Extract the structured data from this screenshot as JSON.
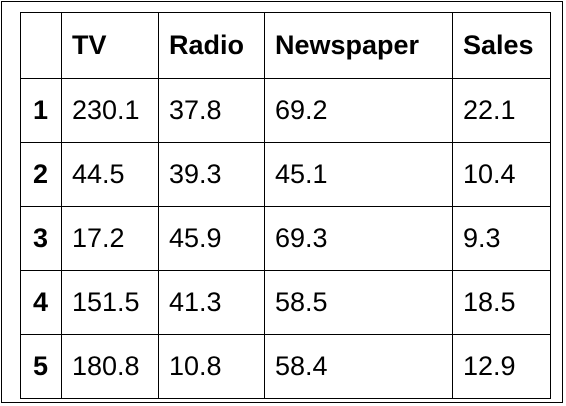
{
  "table": {
    "index_header": "",
    "columns": [
      "TV",
      "Radio",
      "Newspaper",
      "Sales"
    ],
    "rows": [
      {
        "index": "1",
        "cells": [
          "230.1",
          "37.8",
          "69.2",
          "22.1"
        ]
      },
      {
        "index": "2",
        "cells": [
          "44.5",
          "39.3",
          "45.1",
          "10.4"
        ]
      },
      {
        "index": "3",
        "cells": [
          "17.2",
          "45.9",
          "69.3",
          "9.3"
        ]
      },
      {
        "index": "4",
        "cells": [
          "151.5",
          "41.3",
          "58.5",
          "18.5"
        ]
      },
      {
        "index": "5",
        "cells": [
          "180.8",
          "10.8",
          "58.4",
          "12.9"
        ]
      }
    ]
  }
}
